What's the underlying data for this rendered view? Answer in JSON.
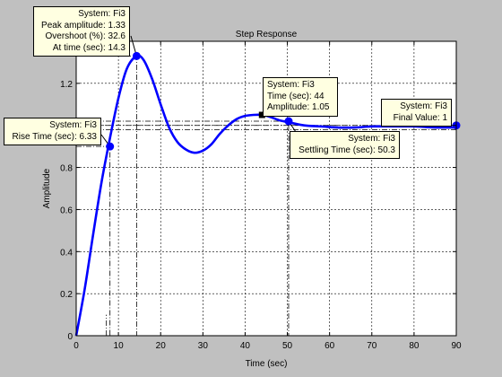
{
  "chart_data": {
    "type": "line",
    "title": "Step Response",
    "xlabel": "Time (sec)",
    "ylabel": "Amplitude",
    "xlim": [
      0,
      90
    ],
    "ylim": [
      0,
      1.4
    ],
    "xticks": [
      0,
      10,
      20,
      30,
      40,
      50,
      60,
      70,
      80,
      90
    ],
    "yticks": [
      0,
      0.2,
      0.4,
      0.6,
      0.8,
      1,
      1.2
    ],
    "grid": true,
    "series": [
      {
        "name": "Fi3",
        "color": "#0000ff",
        "x": [
          0,
          2,
          4,
          6,
          8,
          10,
          12,
          14.3,
          16,
          18,
          20,
          22,
          24,
          26,
          28,
          30,
          32,
          34,
          36,
          38,
          40,
          42,
          44,
          46,
          48,
          50.3,
          54,
          58,
          62,
          66,
          70,
          75,
          80,
          85,
          90
        ],
        "y": [
          0,
          0.22,
          0.48,
          0.73,
          0.94,
          1.13,
          1.27,
          1.33,
          1.31,
          1.22,
          1.1,
          0.99,
          0.92,
          0.885,
          0.87,
          0.88,
          0.91,
          0.96,
          1.0,
          1.03,
          1.045,
          1.05,
          1.05,
          1.04,
          1.025,
          1.015,
          1.0,
          0.995,
          0.99,
          0.99,
          0.995,
          0.995,
          0.995,
          0.99,
          0.99
        ]
      }
    ],
    "markers": [
      {
        "kind": "rise",
        "x": 8,
        "y": 0.9
      },
      {
        "kind": "peak",
        "x": 14.3,
        "y": 1.33
      },
      {
        "kind": "settle",
        "x": 50.3,
        "y": 1.02
      },
      {
        "kind": "final",
        "x": 90,
        "y": 1.0
      },
      {
        "kind": "point",
        "x": 44,
        "y": 1.05
      }
    ],
    "annotations": {
      "peak": [
        "System: Fi3",
        "Peak amplitude: 1.33",
        "Overshoot (%): 32.6",
        "At time (sec): 14.3"
      ],
      "rise": [
        "System: Fi3",
        "Rise Time (sec): 6.33"
      ],
      "datatip": [
        "System: Fi3",
        "Time (sec): 44",
        "Amplitude: 1.05"
      ],
      "settle": [
        "System: Fi3",
        "Settling Time (sec): 50.3"
      ],
      "final": [
        "System: Fi3",
        "Final Value: 1"
      ]
    }
  }
}
